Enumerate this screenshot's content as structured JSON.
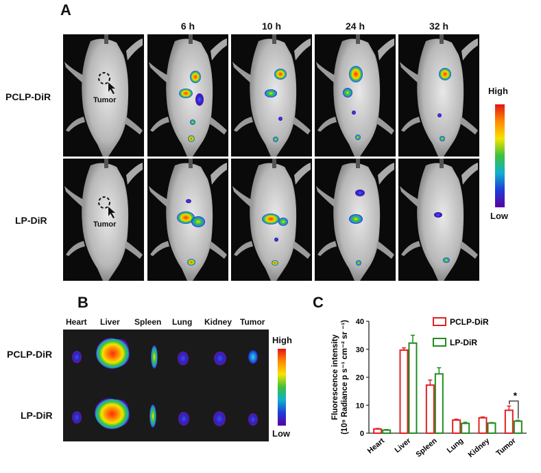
{
  "panel_a": {
    "letter": "A",
    "time_labels": [
      "6 h",
      "10 h",
      "24 h",
      "32 h"
    ],
    "rows": [
      "PCLP-DiR",
      "LP-DiR"
    ],
    "tumor_label": "Tumor",
    "scale": {
      "high": "High",
      "low": "Low"
    },
    "signal_levels": [
      [
        0.0,
        0.55,
        0.65,
        0.9,
        0.6
      ],
      [
        0.0,
        0.6,
        0.5,
        0.35,
        0.15
      ]
    ]
  },
  "panel_b": {
    "letter": "B",
    "organs": [
      "Heart",
      "Liver",
      "Spleen",
      "Lung",
      "Kidney",
      "Tumor"
    ],
    "rows": [
      "PCLP-DiR",
      "LP-DiR"
    ],
    "scale": {
      "high": "High",
      "low": "Low"
    }
  },
  "panel_c": {
    "letter": "C",
    "chart_data": {
      "type": "bar",
      "categories": [
        "Heart",
        "Liver",
        "Spleen",
        "Lung",
        "Kidney",
        "Tumor"
      ],
      "series": [
        {
          "name": "PCLP-DiR",
          "values": [
            1.5,
            29.7,
            17.2,
            4.7,
            5.5,
            8.2
          ],
          "errors": [
            0.2,
            0.8,
            1.8,
            0.3,
            0.3,
            1.5
          ],
          "color": "#e02020"
        },
        {
          "name": "LP-DiR",
          "values": [
            1.1,
            32.2,
            21.2,
            3.5,
            3.6,
            4.3
          ],
          "errors": [
            0.2,
            2.8,
            2.2,
            0.4,
            0.2,
            0.3
          ],
          "color": "#1e8c1e"
        }
      ],
      "ylabel_line1": "Fluorescence intensity",
      "ylabel_line2": "(10⁹ Radiance p s⁻¹ cm⁻² sr ⁻¹)",
      "ylim": [
        0,
        40
      ],
      "yticks": [
        "0",
        "10",
        "20",
        "30",
        "40"
      ],
      "significance": {
        "category": "Tumor",
        "mark": "*"
      }
    }
  }
}
